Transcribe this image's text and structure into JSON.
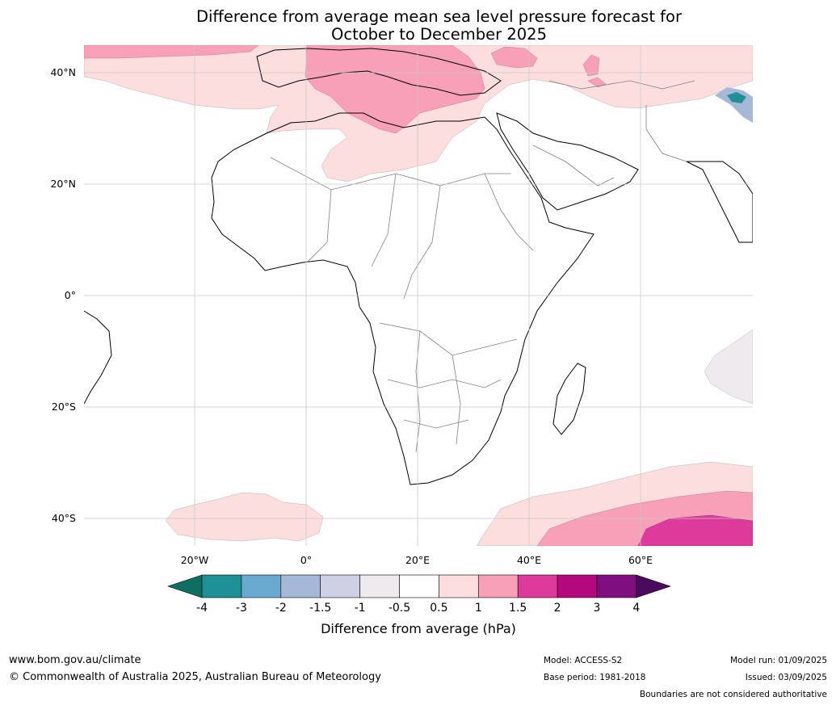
{
  "title_line1": "Difference from average mean sea level pressure forecast for",
  "title_line2": "October to December 2025",
  "map": {
    "lat_labels": [
      "40°N",
      "20°N",
      "0°",
      "20°S",
      "40°S"
    ],
    "lon_labels": [
      "20°W",
      "0°",
      "20°E",
      "40°E",
      "60°E"
    ],
    "colors": {
      "ocean": "#ffffff",
      "land_outline": "#000000",
      "border": "#808080",
      "grid": "#c8c8c8",
      "pos_05_1": "#fddede",
      "pos_1_15": "#f8a0b8",
      "pos_15_2": "#dd3a9c",
      "neg_05_m1": "#eeeaee",
      "neg_m2_m3": "#6aaad0",
      "neg_m3_m4": "#1e9096"
    }
  },
  "colorbar": {
    "ticks": [
      "-4",
      "-3",
      "-2",
      "-1.5",
      "-1",
      "-0.5",
      "0.5",
      "1",
      "1.5",
      "2",
      "3",
      "4"
    ],
    "colors": [
      "#0e6e62",
      "#1e9096",
      "#6aaad0",
      "#a6b8d8",
      "#d0d0e4",
      "#eeeaee",
      "#ffffff",
      "#fddede",
      "#f8a0b8",
      "#dd3a9c",
      "#b5087e",
      "#7f0f7e",
      "#4a0a5e"
    ],
    "label": "Difference from average (hPa)"
  },
  "footer": {
    "url": "www.bom.gov.au/climate",
    "copyright": "© Commonwealth of Australia 2025, Australian Bureau of Meteorology",
    "model": "Model: ACCESS-S2",
    "base_period": "Base period: 1981-2018",
    "model_run": "Model run: 01/09/2025",
    "issued": "Issued: 03/09/2025",
    "disclaimer": "Boundaries are not considered authoritative"
  }
}
